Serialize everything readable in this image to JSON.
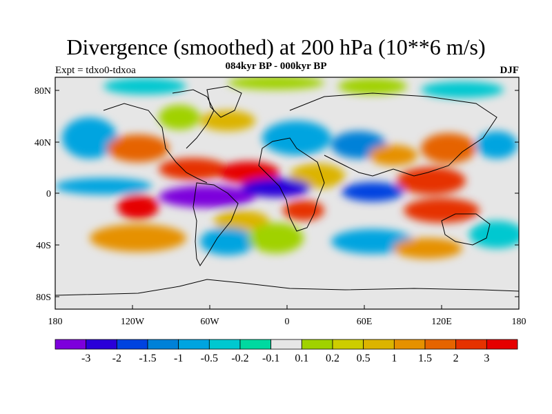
{
  "title": "Divergence (smoothed) at 200 hPa (10**6 m/s)",
  "subtitle": "084kyr BP - 000kyr BP",
  "expt_label": "Expt = tdxo0-tdxoa",
  "season": "DJF",
  "lat_ticks": [
    "80N",
    "40N",
    "0",
    "40S",
    "80S"
  ],
  "lon_ticks": [
    "180",
    "120W",
    "60W",
    "0",
    "60E",
    "120E",
    "180"
  ],
  "colorbar": {
    "colors": [
      "#7d00dc",
      "#2a00d9",
      "#0043e0",
      "#0081d8",
      "#00a4e0",
      "#00c8d0",
      "#00d9a0",
      "#e6e6e6",
      "#a0d200",
      "#cdcd00",
      "#dcb400",
      "#e69100",
      "#e66400",
      "#e63200",
      "#e60000"
    ],
    "labels": [
      "-3",
      "-2",
      "-1.5",
      "-1",
      "-0.5",
      "-0.2",
      "-0.1",
      "0.1",
      "0.2",
      "0.5",
      "1",
      "1.5",
      "2",
      "3"
    ]
  }
}
